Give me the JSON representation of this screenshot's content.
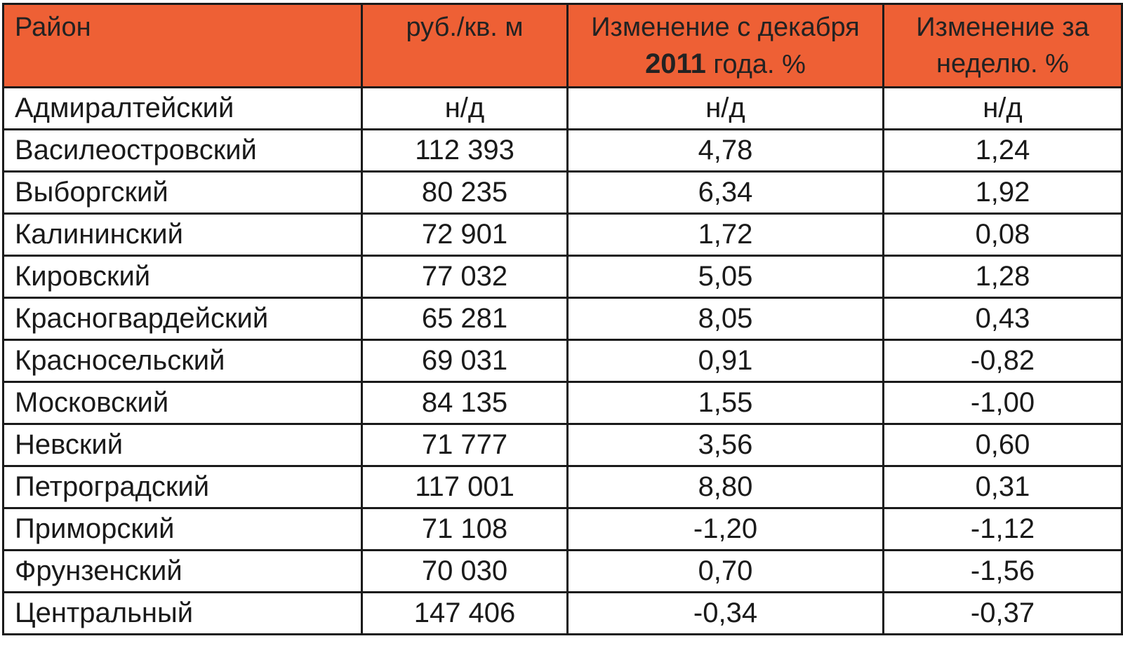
{
  "chart_data": {
    "type": "table",
    "columns": [
      "Район",
      "руб./кв.  м",
      "Изменение с декабря 2011 года. %",
      "Изменение за неделю. %"
    ],
    "header": {
      "district": "Район",
      "price": "руб./кв.  м",
      "change_dec_line1": "Изменение с декабря",
      "change_dec_year": "2011",
      "change_dec_rest": " года. %",
      "change_week_line1": "Изменение за",
      "change_week_line2": "неделю. %"
    },
    "rows": [
      [
        "Адмиралтейский",
        "н/д",
        "н/д",
        "н/д"
      ],
      [
        "Василеостровский",
        "112 393",
        "4,78",
        "1,24"
      ],
      [
        "Выборгский",
        "80 235",
        "6,34",
        "1,92"
      ],
      [
        "Калининский",
        "72 901",
        "1,72",
        "0,08"
      ],
      [
        "Кировский",
        "77 032",
        "5,05",
        "1,28"
      ],
      [
        "Красногвардейский",
        "65 281",
        "8,05",
        "0,43"
      ],
      [
        "Красносельский",
        "69 031",
        "0,91",
        "-0,82"
      ],
      [
        "Московский",
        "84 135",
        "1,55",
        "-1,00"
      ],
      [
        "Невский",
        "71 777",
        "3,56",
        "0,60"
      ],
      [
        "Петроградский",
        "117 001",
        "8,80",
        "0,31"
      ],
      [
        "Приморский",
        "71 108",
        "-1,20",
        "-1,12"
      ],
      [
        "Фрунзенский",
        "70 030",
        "0,70",
        "-1,56"
      ],
      [
        "Центральный",
        "147 406",
        "-0,34",
        "-0,37"
      ]
    ],
    "colors": {
      "header_background": "#ee6035",
      "border": "#1a1a1a"
    }
  }
}
